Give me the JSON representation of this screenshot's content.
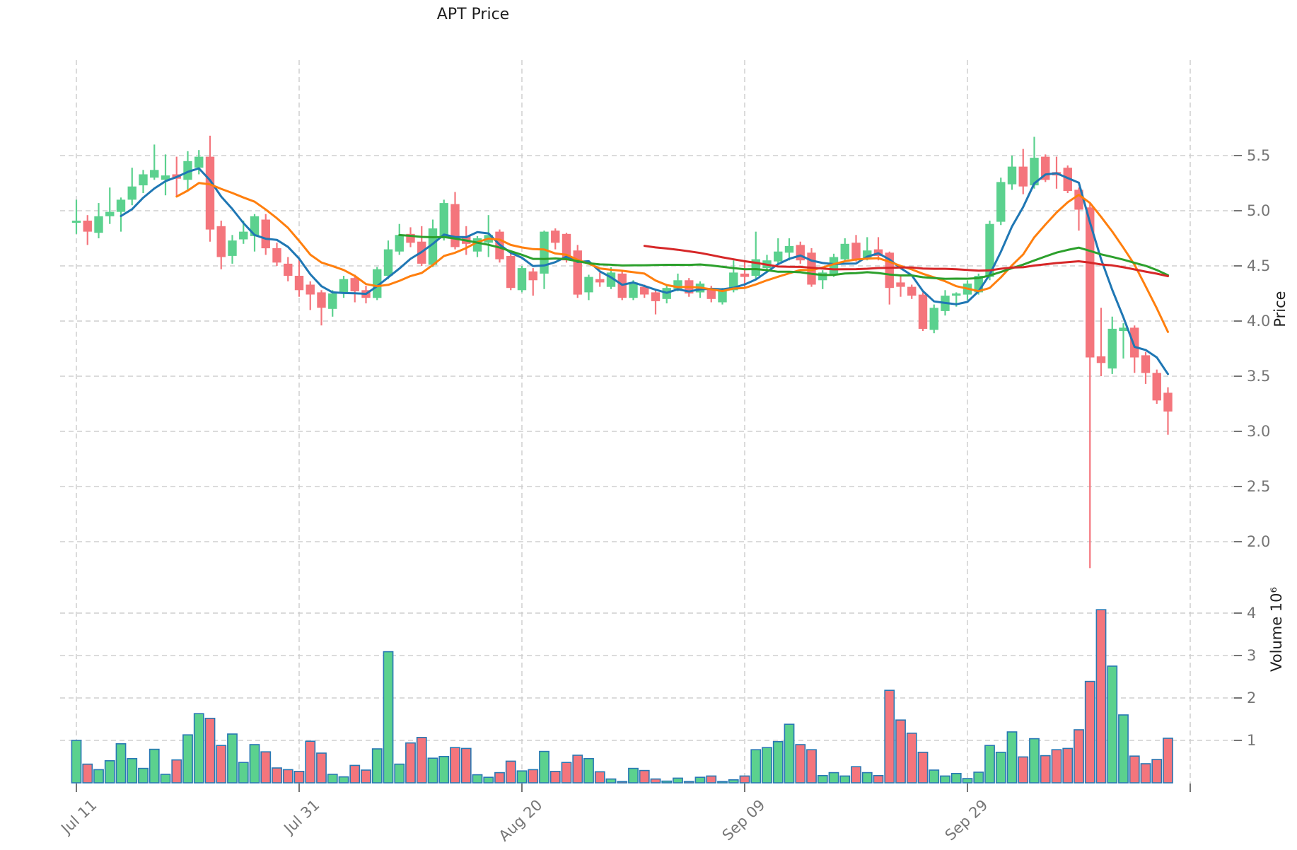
{
  "title": "APT Price",
  "axes": {
    "price_label": "Price",
    "volume_label": "Volume  10⁶",
    "price_ticks": [
      {
        "value": 5.5,
        "label": "5.5"
      },
      {
        "value": 5.0,
        "label": "5.0"
      },
      {
        "value": 4.5,
        "label": "4.5"
      },
      {
        "value": 4.0,
        "label": "4.0"
      },
      {
        "value": 3.5,
        "label": "3.5"
      },
      {
        "value": 3.0,
        "label": "3.0"
      },
      {
        "value": 2.5,
        "label": "2.5"
      },
      {
        "value": 2.0,
        "label": "2.0"
      }
    ],
    "volume_ticks": [
      {
        "value": 4,
        "label": "4"
      },
      {
        "value": 3,
        "label": "3"
      },
      {
        "value": 2,
        "label": "2"
      },
      {
        "value": 1,
        "label": "1"
      }
    ],
    "x_ticks": [
      {
        "index": 0,
        "label": "Jul 11"
      },
      {
        "index": 20,
        "label": "Jul 31"
      },
      {
        "index": 40,
        "label": "Aug 20"
      },
      {
        "index": 60,
        "label": "Sep 09"
      },
      {
        "index": 80,
        "label": "Sep 29"
      },
      {
        "index": 100,
        "label": ""
      }
    ]
  },
  "colors": {
    "up": "#5bd18e",
    "down": "#f4757c",
    "volume_edge": "#2878b4",
    "ma_blue": "#1f77b4",
    "ma_orange": "#ff7f0e",
    "ma_green": "#2ca02c",
    "ma_red": "#d62728",
    "grid": "#cfcfcf",
    "tick_text": "#767676",
    "label_text": "#1f1f1f"
  },
  "chart_data": {
    "type": "candlestick",
    "title": "APT Price",
    "ylabel": "Price",
    "ylabel2": "Volume  10⁶",
    "price_axis_range": [
      1.65,
      6.37
    ],
    "volume_axis_range_millions": [
      0,
      4.78
    ],
    "grid": "dashed",
    "legend_position": "none",
    "moving_averages": [
      {
        "name": "MA5",
        "period": 5,
        "color": "#1f77b4"
      },
      {
        "name": "MA10",
        "period": 10,
        "color": "#ff7f0e"
      },
      {
        "name": "MA30",
        "period": 30,
        "color": "#2ca02c"
      },
      {
        "name": "MA52",
        "period": 52,
        "color": "#d62728"
      }
    ],
    "columns": [
      "date",
      "open",
      "high",
      "low",
      "close",
      "volume_millions"
    ],
    "rows": [
      [
        "Jul 11",
        4.89,
        5.1,
        4.79,
        4.91,
        1.0
      ],
      [
        "Jul 12",
        4.91,
        4.96,
        4.69,
        4.81,
        0.44
      ],
      [
        "Jul 13",
        4.8,
        5.07,
        4.75,
        4.95,
        0.31
      ],
      [
        "Jul 14",
        4.95,
        5.21,
        4.88,
        4.99,
        0.52
      ],
      [
        "Jul 15",
        4.99,
        5.12,
        4.81,
        5.1,
        0.92
      ],
      [
        "Jul 16",
        5.1,
        5.39,
        5.05,
        5.22,
        0.57
      ],
      [
        "Jul 17",
        5.23,
        5.37,
        5.16,
        5.33,
        0.34
      ],
      [
        "Jul 18",
        5.3,
        5.6,
        5.28,
        5.37,
        0.79
      ],
      [
        "Jul 19",
        5.28,
        5.51,
        5.14,
        5.32,
        0.2
      ],
      [
        "Jul 20",
        5.33,
        5.49,
        5.13,
        5.29,
        0.54
      ],
      [
        "Jul 21",
        5.28,
        5.54,
        5.18,
        5.45,
        1.13
      ],
      [
        "Jul 22",
        5.39,
        5.55,
        5.33,
        5.49,
        1.63
      ],
      [
        "Jul 23",
        5.49,
        5.68,
        4.72,
        4.83,
        1.52
      ],
      [
        "Jul 24",
        4.86,
        4.91,
        4.47,
        4.58,
        0.88
      ],
      [
        "Jul 25",
        4.59,
        4.78,
        4.52,
        4.73,
        1.15
      ],
      [
        "Jul 26",
        4.74,
        4.91,
        4.7,
        4.81,
        0.48
      ],
      [
        "Jul 27",
        4.77,
        4.97,
        4.63,
        4.95,
        0.9
      ],
      [
        "Jul 28",
        4.92,
        4.97,
        4.6,
        4.66,
        0.73
      ],
      [
        "Jul 29",
        4.66,
        4.71,
        4.5,
        4.53,
        0.35
      ],
      [
        "Jul 30",
        4.52,
        4.58,
        4.36,
        4.41,
        0.31
      ],
      [
        "Jul 31",
        4.41,
        4.56,
        4.22,
        4.28,
        0.27
      ],
      [
        "Aug 01",
        4.33,
        4.36,
        4.1,
        4.24,
        0.98
      ],
      [
        "Aug 02",
        4.26,
        4.28,
        3.96,
        4.12,
        0.7
      ],
      [
        "Aug 03",
        4.11,
        4.28,
        4.04,
        4.25,
        0.2
      ],
      [
        "Aug 04",
        4.25,
        4.41,
        4.21,
        4.38,
        0.14
      ],
      [
        "Aug 05",
        4.39,
        4.42,
        4.17,
        4.27,
        0.41
      ],
      [
        "Aug 06",
        4.28,
        4.32,
        4.16,
        4.21,
        0.3
      ],
      [
        "Aug 07",
        4.21,
        4.49,
        4.19,
        4.47,
        0.8
      ],
      [
        "Aug 08",
        4.41,
        4.73,
        4.38,
        4.65,
        3.09
      ],
      [
        "Aug 09",
        4.63,
        4.88,
        4.6,
        4.78,
        0.44
      ],
      [
        "Aug 10",
        4.79,
        4.85,
        4.67,
        4.71,
        0.94
      ],
      [
        "Aug 11",
        4.72,
        4.86,
        4.5,
        4.52,
        1.07
      ],
      [
        "Aug 12",
        4.51,
        4.92,
        4.49,
        4.84,
        0.58
      ],
      [
        "Aug 13",
        4.75,
        5.1,
        4.73,
        5.07,
        0.62
      ],
      [
        "Aug 14",
        5.06,
        5.17,
        4.65,
        4.67,
        0.83
      ],
      [
        "Aug 15",
        4.77,
        4.86,
        4.6,
        4.7,
        0.81
      ],
      [
        "Aug 16",
        4.63,
        4.77,
        4.58,
        4.75,
        0.19
      ],
      [
        "Aug 17",
        4.71,
        4.96,
        4.58,
        4.78,
        0.13
      ],
      [
        "Aug 18",
        4.81,
        4.83,
        4.53,
        4.56,
        0.24
      ],
      [
        "Aug 19",
        4.59,
        4.62,
        4.28,
        4.3,
        0.51
      ],
      [
        "Aug 20",
        4.28,
        4.5,
        4.26,
        4.48,
        0.28
      ],
      [
        "Aug 21",
        4.45,
        4.48,
        4.23,
        4.37,
        0.31
      ],
      [
        "Aug 22",
        4.43,
        4.82,
        4.29,
        4.81,
        0.74
      ],
      [
        "Aug 23",
        4.82,
        4.84,
        4.65,
        4.71,
        0.27
      ],
      [
        "Aug 24",
        4.79,
        4.8,
        4.53,
        4.55,
        0.48
      ],
      [
        "Aug 25",
        4.64,
        4.69,
        4.21,
        4.24,
        0.65
      ],
      [
        "Aug 26",
        4.26,
        4.42,
        4.19,
        4.4,
        0.57
      ],
      [
        "Aug 27",
        4.38,
        4.44,
        4.31,
        4.35,
        0.26
      ],
      [
        "Aug 28",
        4.31,
        4.49,
        4.29,
        4.44,
        0.09
      ],
      [
        "Aug 29",
        4.43,
        4.45,
        4.19,
        4.21,
        0.03
      ],
      [
        "Aug 30",
        4.21,
        4.37,
        4.19,
        4.35,
        0.34
      ],
      [
        "Aug 31",
        4.31,
        4.33,
        4.21,
        4.24,
        0.29
      ],
      [
        "Sep 01",
        4.26,
        4.28,
        4.06,
        4.18,
        0.09
      ],
      [
        "Sep 02",
        4.2,
        4.32,
        4.16,
        4.3,
        0.04
      ],
      [
        "Sep 03",
        4.29,
        4.43,
        4.27,
        4.37,
        0.11
      ],
      [
        "Sep 04",
        4.37,
        4.39,
        4.22,
        4.25,
        0.03
      ],
      [
        "Sep 05",
        4.26,
        4.36,
        4.21,
        4.34,
        0.13
      ],
      [
        "Sep 06",
        4.3,
        4.32,
        4.17,
        4.2,
        0.16
      ],
      [
        "Sep 07",
        4.17,
        4.3,
        4.15,
        4.28,
        0.03
      ],
      [
        "Sep 08",
        4.28,
        4.55,
        4.26,
        4.44,
        0.07
      ],
      [
        "Sep 09",
        4.43,
        4.55,
        4.3,
        4.4,
        0.16
      ],
      [
        "Sep 10",
        4.41,
        4.81,
        4.38,
        4.56,
        0.78
      ],
      [
        "Sep 11",
        4.48,
        4.6,
        4.45,
        4.55,
        0.83
      ],
      [
        "Sep 12",
        4.54,
        4.75,
        4.52,
        4.63,
        0.97
      ],
      [
        "Sep 13",
        4.62,
        4.75,
        4.55,
        4.68,
        1.38
      ],
      [
        "Sep 14",
        4.69,
        4.72,
        4.52,
        4.55,
        0.9
      ],
      [
        "Sep 15",
        4.62,
        4.66,
        4.31,
        4.33,
        0.78
      ],
      [
        "Sep 16",
        4.37,
        4.46,
        4.29,
        4.44,
        0.17
      ],
      [
        "Sep 17",
        4.42,
        4.61,
        4.4,
        4.58,
        0.24
      ],
      [
        "Sep 18",
        4.56,
        4.75,
        4.54,
        4.7,
        0.16
      ],
      [
        "Sep 19",
        4.71,
        4.78,
        4.54,
        4.56,
        0.38
      ],
      [
        "Sep 20",
        4.57,
        4.76,
        4.55,
        4.64,
        0.24
      ],
      [
        "Sep 21",
        4.65,
        4.76,
        4.55,
        4.59,
        0.17
      ],
      [
        "Sep 22",
        4.62,
        4.63,
        4.15,
        4.3,
        2.18
      ],
      [
        "Sep 23",
        4.35,
        4.41,
        4.22,
        4.31,
        1.48
      ],
      [
        "Sep 24",
        4.31,
        4.33,
        4.2,
        4.23,
        1.17
      ],
      [
        "Sep 25",
        4.24,
        4.26,
        3.91,
        3.93,
        0.72
      ],
      [
        "Sep 26",
        3.92,
        4.15,
        3.89,
        4.12,
        0.3
      ],
      [
        "Sep 27",
        4.09,
        4.28,
        4.05,
        4.23,
        0.16
      ],
      [
        "Sep 28",
        4.23,
        4.26,
        4.13,
        4.25,
        0.22
      ],
      [
        "Sep 29",
        4.24,
        4.37,
        4.19,
        4.34,
        0.1
      ],
      [
        "Sep 30",
        4.26,
        4.43,
        4.24,
        4.41,
        0.25
      ],
      [
        "Oct 01",
        4.4,
        4.91,
        4.37,
        4.88,
        0.88
      ],
      [
        "Oct 02",
        4.9,
        5.3,
        4.87,
        5.26,
        0.72
      ],
      [
        "Oct 03",
        5.24,
        5.5,
        5.19,
        5.4,
        1.2
      ],
      [
        "Oct 04",
        5.4,
        5.56,
        5.15,
        5.22,
        0.61
      ],
      [
        "Oct 05",
        5.23,
        5.67,
        5.2,
        5.48,
        1.04
      ],
      [
        "Oct 06",
        5.49,
        5.51,
        5.26,
        5.28,
        0.64
      ],
      [
        "Oct 07",
        5.35,
        5.49,
        5.2,
        5.32,
        0.78
      ],
      [
        "Oct 08",
        5.39,
        5.41,
        5.16,
        5.18,
        0.81
      ],
      [
        "Oct 09",
        5.19,
        5.21,
        4.82,
        5.01,
        1.25
      ],
      [
        "Oct 10",
        5.03,
        5.06,
        1.76,
        3.67,
        2.39
      ],
      [
        "Oct 11",
        3.68,
        4.12,
        3.5,
        3.62,
        4.08
      ],
      [
        "Oct 12",
        3.57,
        4.04,
        3.52,
        3.93,
        2.75
      ],
      [
        "Oct 13",
        3.91,
        3.98,
        3.66,
        3.94,
        1.6
      ],
      [
        "Oct 14",
        3.94,
        3.96,
        3.53,
        3.67,
        0.63
      ],
      [
        "Oct 15",
        3.69,
        3.72,
        3.43,
        3.53,
        0.45
      ],
      [
        "Oct 16",
        3.53,
        3.56,
        3.25,
        3.28,
        0.55
      ],
      [
        "Oct 17",
        3.35,
        3.4,
        2.97,
        3.18,
        1.05
      ]
    ]
  }
}
